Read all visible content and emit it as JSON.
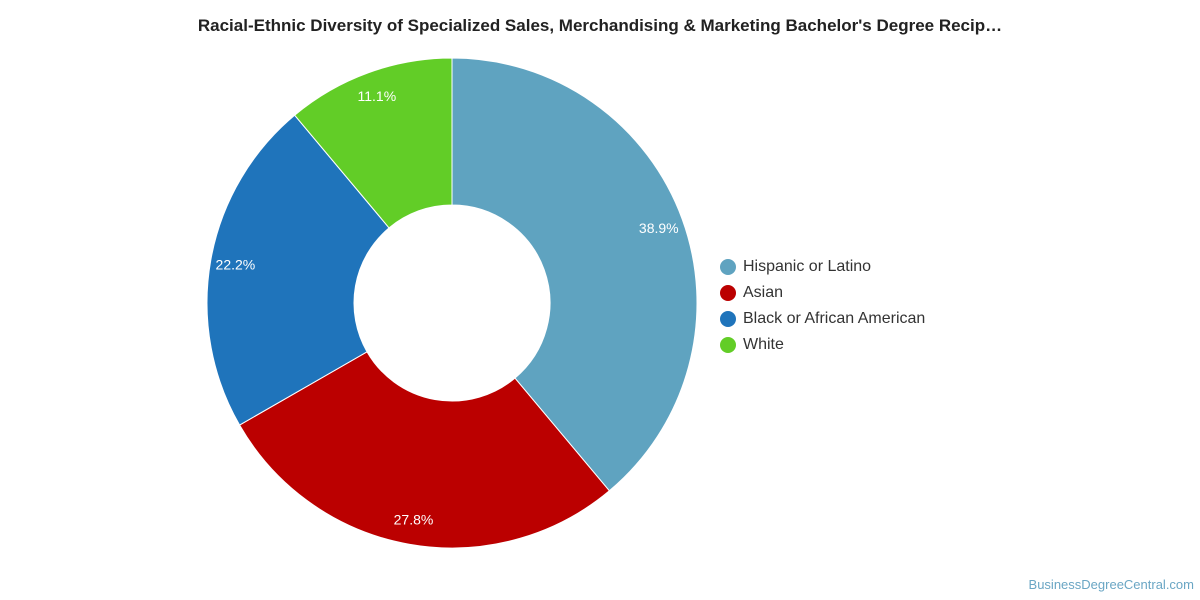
{
  "chart_data": {
    "type": "pie",
    "title": "Racial-Ethnic Diversity of Specialized Sales, Merchandising & Marketing Bachelor's Degree Recip…",
    "donut": true,
    "legend_position": "right",
    "slices": [
      {
        "label": "Hispanic or Latino",
        "value": 38.9,
        "value_label": "38.9%",
        "color": "#5fa3c0"
      },
      {
        "label": "Asian",
        "value": 27.8,
        "value_label": "27.8%",
        "color": "#bb0000"
      },
      {
        "label": "Black or African American",
        "value": 22.2,
        "value_label": "22.2%",
        "color": "#1f74bb"
      },
      {
        "label": "White",
        "value": 11.1,
        "value_label": "11.1%",
        "color": "#62cd27"
      }
    ]
  },
  "credit": "BusinessDegreeCentral.com"
}
